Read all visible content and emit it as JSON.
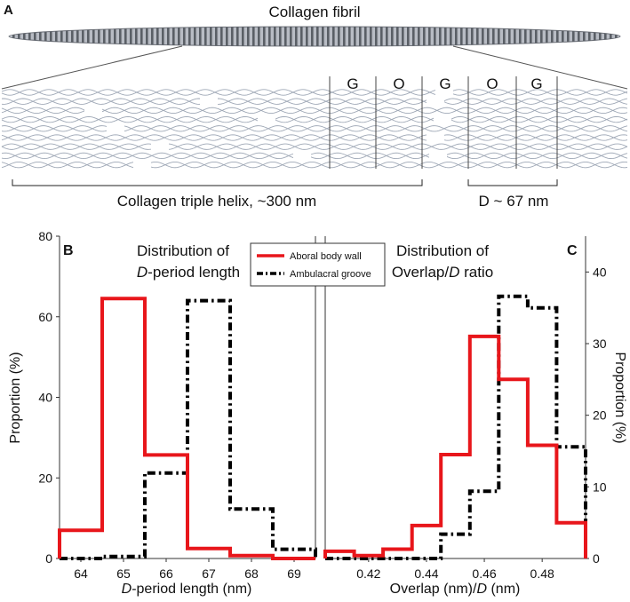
{
  "panel_a": {
    "panel_letter": "A",
    "fibril_label": "Collagen fibril",
    "band_labels": [
      "G",
      "O",
      "G",
      "O",
      "G"
    ],
    "helix_bracket_label": "Collagen triple helix, ~300 nm",
    "d_bracket_label": "D ~ 67 nm",
    "colors": {
      "fibril_fill": "#b8bcc4",
      "fibril_stripe": "#5a5f66",
      "helix": "#9fa8b6"
    }
  },
  "chart_data": [
    {
      "type": "histogram",
      "panel_letter": "B",
      "title_line1": "Distribution of",
      "title_line2_italic": "D",
      "title_line2_rest": "-period length",
      "xlabel_italic": "D",
      "xlabel_rest": "-period length (nm)",
      "ylabel": "Proportion (%)",
      "xlim": [
        63.5,
        69.5
      ],
      "ylim": [
        0,
        80
      ],
      "xticks": [
        "64",
        "65",
        "66",
        "67",
        "68",
        "69"
      ],
      "xtick_values": [
        64,
        65,
        66,
        67,
        68,
        69
      ],
      "yticks": [
        "0",
        "20",
        "40",
        "60",
        "80"
      ],
      "ytick_values": [
        0,
        20,
        40,
        60,
        80
      ],
      "bin_edges": [
        63.5,
        64.5,
        65.5,
        66.5,
        67.5,
        68.5,
        69.5
      ],
      "series": [
        {
          "name": "Aboral body wall",
          "color": "#e8161b",
          "dash": "solid",
          "values": [
            7.0,
            64.5,
            25.7,
            2.5,
            0.7,
            0.0
          ]
        },
        {
          "name": "Ambulacral groove",
          "color": "#000000",
          "dash": "dashdot",
          "values": [
            0.0,
            0.5,
            21.2,
            64.0,
            12.3,
            2.3
          ]
        }
      ]
    },
    {
      "type": "histogram",
      "panel_letter": "C",
      "title_line1": "Distribution of",
      "title_line2_pre": "Overlap/",
      "title_line2_italic": "D",
      "title_line2_rest": " ratio",
      "xlabel_pre": "Overlap (nm)/",
      "xlabel_italic": "D",
      "xlabel_rest": " (nm)",
      "ylabel": "Proportion (%)",
      "xlim": [
        0.405,
        0.495
      ],
      "ylim": [
        0,
        45
      ],
      "xticks": [
        "0.42",
        "0.44",
        "0.46",
        "0.48"
      ],
      "xtick_values": [
        0.42,
        0.44,
        0.46,
        0.48
      ],
      "yticks": [
        "0",
        "10",
        "20",
        "30",
        "40"
      ],
      "ytick_values": [
        0,
        10,
        20,
        30,
        40
      ],
      "bin_edges": [
        0.405,
        0.415,
        0.425,
        0.435,
        0.445,
        0.455,
        0.465,
        0.47,
        0.475,
        0.485,
        0.495
      ],
      "series": [
        {
          "name": "Aboral body wall",
          "color": "#e8161b",
          "dash": "solid",
          "edges": [
            0.405,
            0.415,
            0.425,
            0.435,
            0.445,
            0.455,
            0.465,
            0.475,
            0.485,
            0.495
          ],
          "values": [
            1.0,
            0.4,
            1.3,
            4.6,
            14.5,
            31.0,
            25.0,
            15.8,
            5.0
          ]
        },
        {
          "name": "Ambulacral groove",
          "color": "#000000",
          "dash": "dashdot",
          "edges": [
            0.405,
            0.415,
            0.425,
            0.435,
            0.445,
            0.455,
            0.465,
            0.47,
            0.475,
            0.485,
            0.495
          ],
          "values": [
            0,
            0,
            0,
            0,
            3.4,
            9.4,
            36.6,
            36.6,
            35.0,
            15.6
          ]
        }
      ]
    }
  ],
  "legend": {
    "placement": "top-center",
    "entries": [
      {
        "label": "Aboral body wall",
        "color": "#e8161b",
        "dash": "solid"
      },
      {
        "label": "Ambulacral groove",
        "color": "#000000",
        "dash": "dashdot"
      }
    ]
  }
}
